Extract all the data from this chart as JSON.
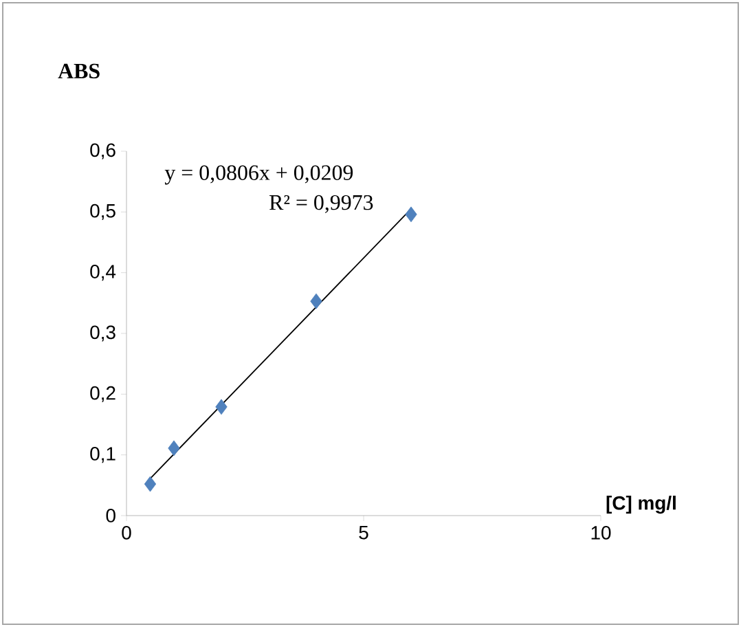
{
  "chart_data": {
    "type": "scatter",
    "ylabel": "ABS",
    "xlabel": "[C] mg/l",
    "marker": "diamond",
    "grid": false,
    "xlim": [
      0,
      10
    ],
    "ylim": [
      0,
      0.6
    ],
    "xticks": [
      0,
      5,
      10
    ],
    "yticks": [
      0,
      {
        "value": 0.1,
        "label": "0,1"
      },
      {
        "value": 0.2,
        "label": "0,2"
      },
      {
        "value": 0.3,
        "label": "0,3"
      },
      {
        "value": 0.4,
        "label": "0,4"
      },
      {
        "value": 0.5,
        "label": "0,5"
      },
      {
        "value": 0.6,
        "label": "0,6"
      }
    ],
    "annotations": [
      "y = 0,0806x + 0,0209",
      "R² = 0,9973"
    ],
    "series": [
      {
        "color": "#4f81bd",
        "x": [
          0.5,
          1,
          2,
          4,
          6
        ],
        "values": [
          0.052,
          0.111,
          0.179,
          0.353,
          0.496
        ]
      },
      {
        "type": "line",
        "color": "#000000",
        "marker": "none",
        "x": [
          0.5,
          6
        ],
        "values": [
          0.061,
          0.505
        ]
      }
    ]
  }
}
